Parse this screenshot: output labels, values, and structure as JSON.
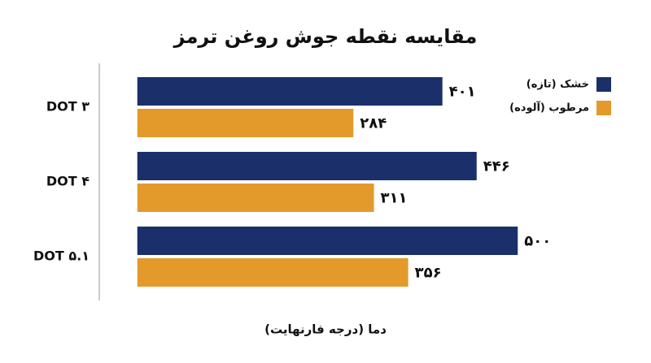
{
  "chart_data": {
    "type": "hbar",
    "title": "مقایسه نقطه جوش روغن ترمز",
    "x_label": "دما (درجه فارنهایت)",
    "categories": [
      "DOT ۳",
      "DOT ۴",
      "DOT ۵.۱"
    ],
    "series": [
      {
        "name": "خشک (تازه)",
        "color": "#1b2f6b",
        "values": [
          401,
          446,
          500
        ],
        "value_labels": [
          "۴۰۱",
          "۴۴۶",
          "۵۰۰"
        ]
      },
      {
        "name": "مرطوب (آلوده)",
        "color": "#e39a2b",
        "values": [
          284,
          311,
          356
        ],
        "value_labels": [
          "۲۸۴",
          "۳۱۱",
          "۳۵۶"
        ]
      }
    ],
    "xlim": [
      -50,
      550
    ],
    "legend": "top-right"
  }
}
